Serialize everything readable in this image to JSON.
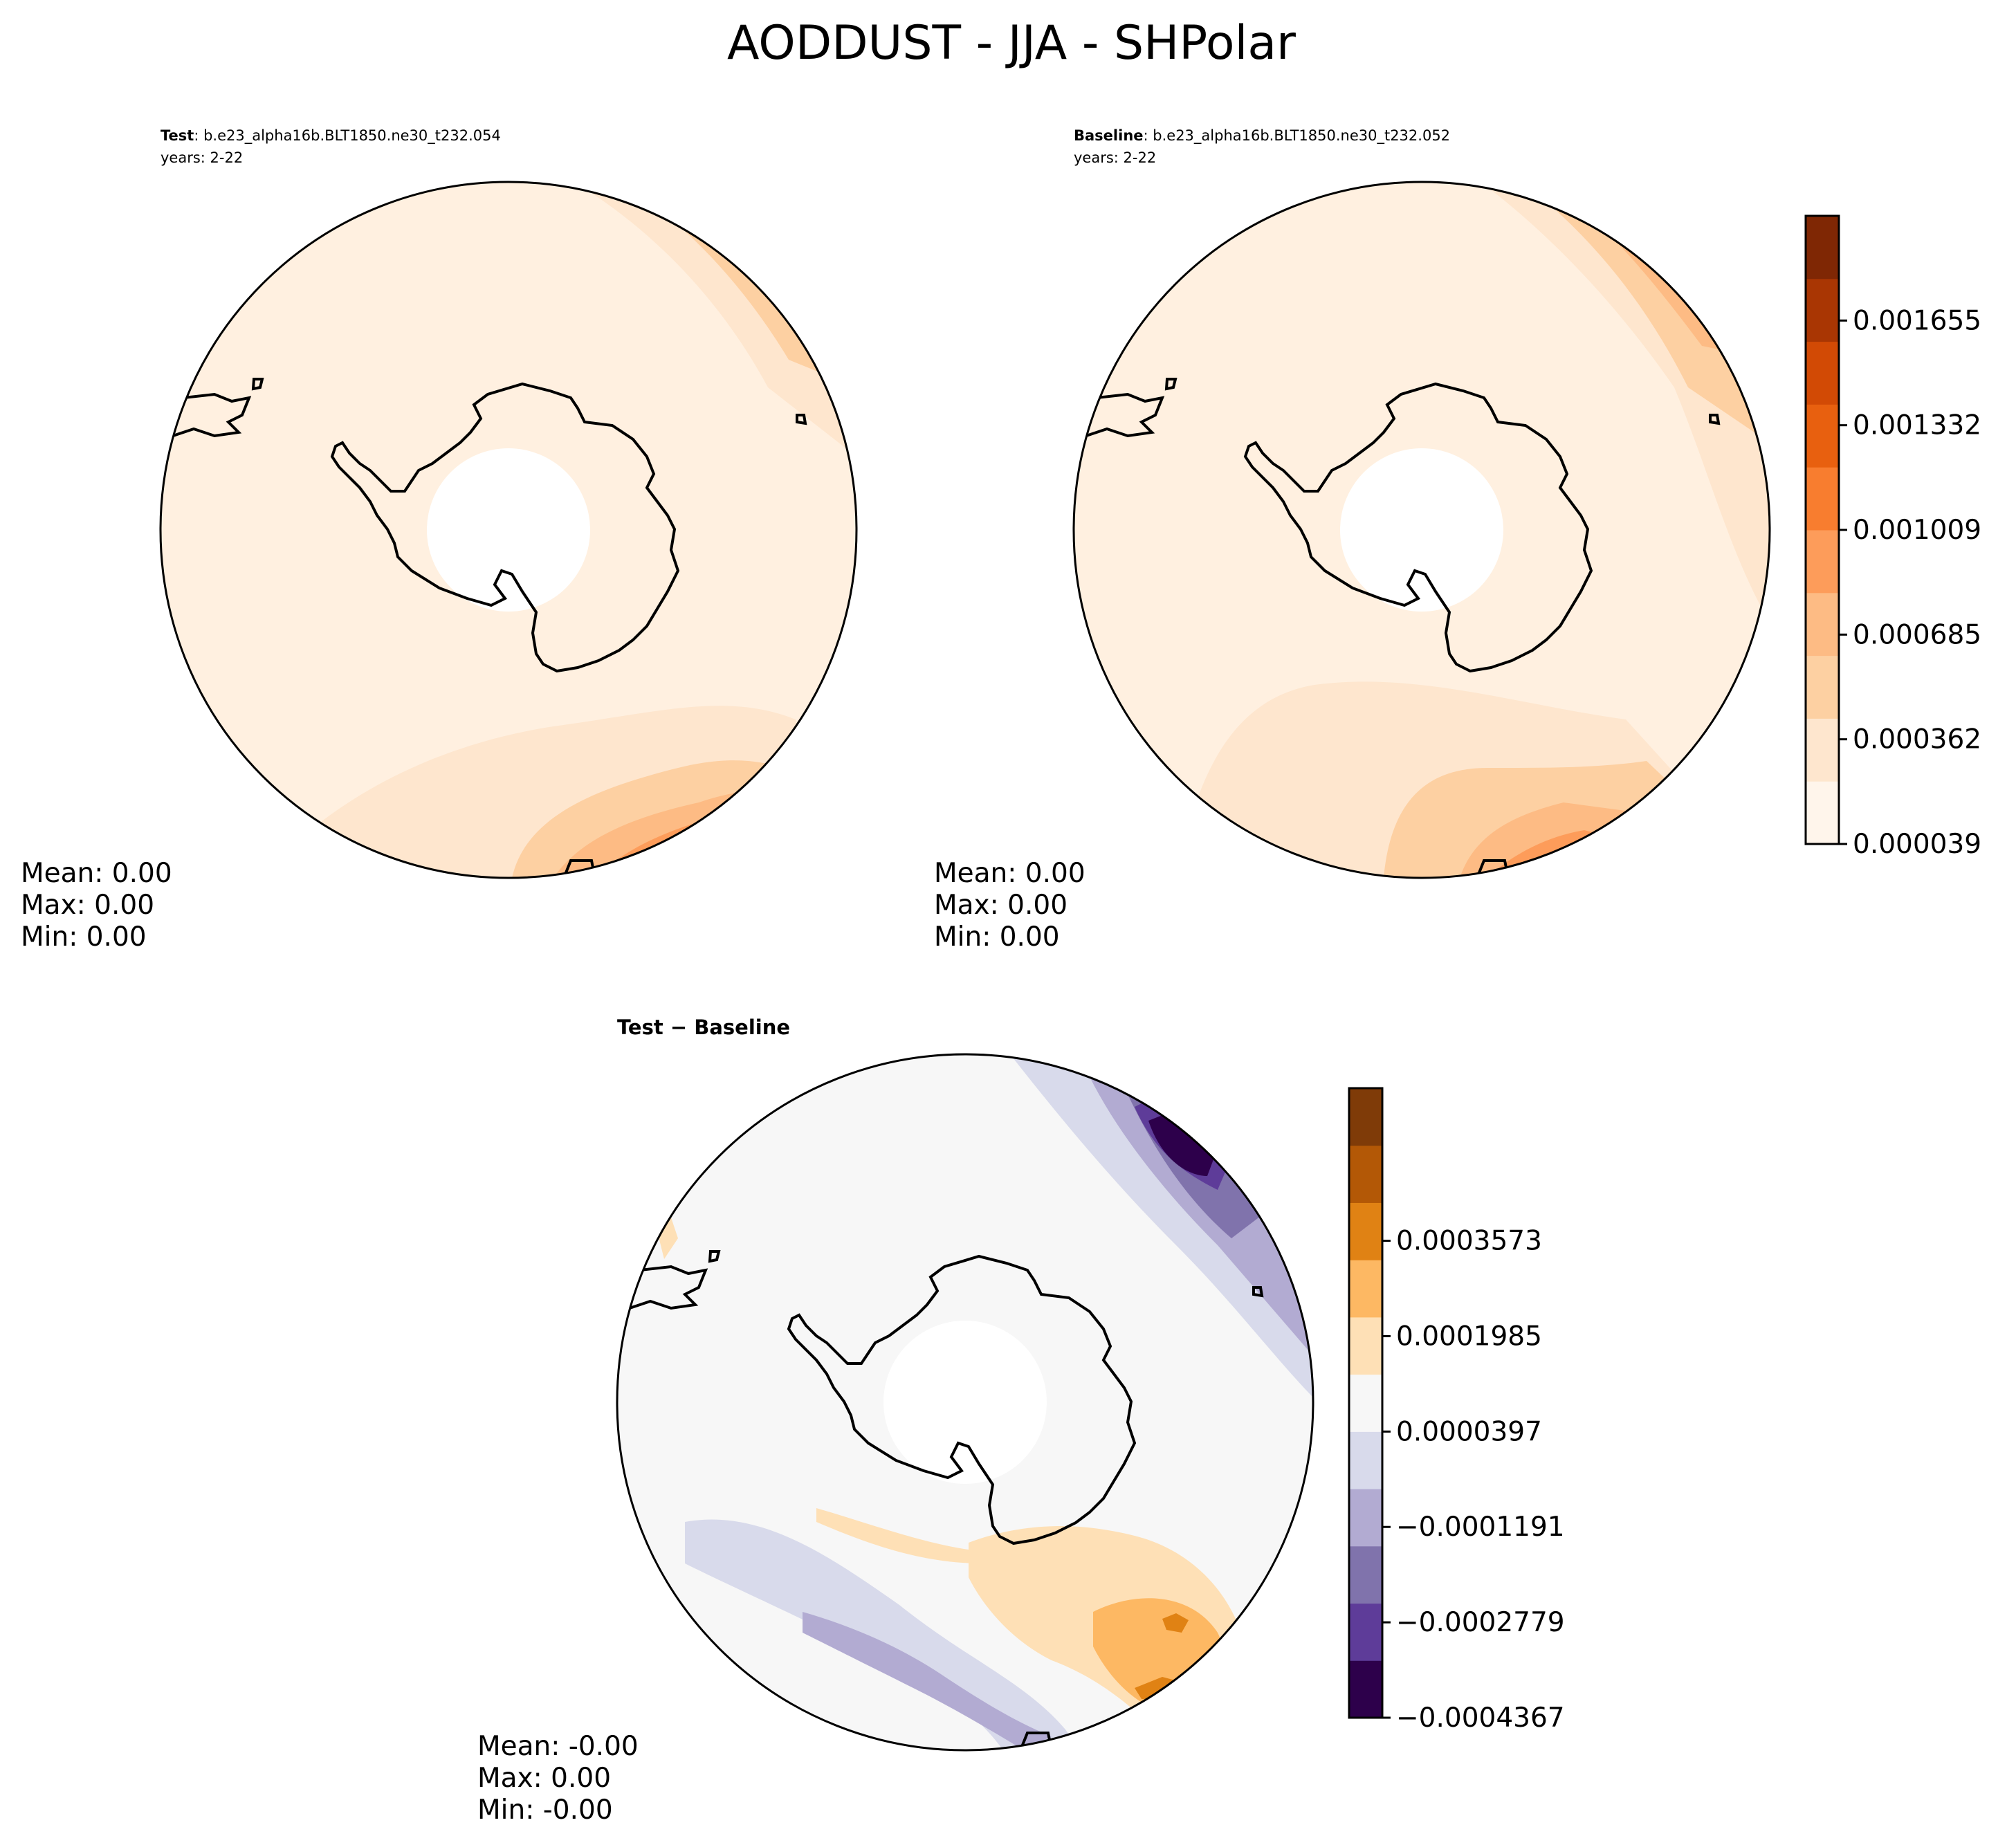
{
  "figure": {
    "title": "AODDUST - JJA - SHPolar"
  },
  "panels": {
    "test": {
      "label": "Test",
      "case": ": b.e23_alpha16b.BLT1850.ne30_t232.054",
      "years": "years: 2-22",
      "mean": "Mean:  0.00",
      "max": "Max:  0.00",
      "min": "Min:  0.00"
    },
    "baseline": {
      "label": "Baseline",
      "case": ": b.e23_alpha16b.BLT1850.ne30_t232.052",
      "years": "years: 2-22",
      "mean": "Mean:  0.00",
      "max": "Max:  0.00",
      "min": "Min:  0.00"
    },
    "diff": {
      "label": "Test − Baseline",
      "mean": "Mean: -0.00",
      "max": "Max:  0.00",
      "min": "Min: -0.00"
    }
  },
  "colorbar_top": {
    "ticks": [
      "0.000039",
      "0.000362",
      "0.000685",
      "0.001009",
      "0.001332",
      "0.001655"
    ],
    "colors": [
      "#fff5eb",
      "#fee6ce",
      "#fdd0a2",
      "#fdbb84",
      "#fd9c5a",
      "#f87d2f",
      "#e8600f",
      "#d24a05",
      "#a93603",
      "#7f2704"
    ]
  },
  "colorbar_diff": {
    "ticks": [
      "−0.0004367",
      "−0.0002779",
      "−0.0001191",
      "0.0000397",
      "0.0001985",
      "0.0003573"
    ],
    "colors": [
      "#2d004b",
      "#5e3c99",
      "#8073ac",
      "#b2abd2",
      "#d8daeb",
      "#f7f7f7",
      "#fee0b6",
      "#fdb863",
      "#e08214",
      "#b35806",
      "#7f3b08"
    ]
  },
  "colors": {
    "land_outline": "#000000",
    "ocean_base_top": "#fff0e0",
    "ocean_base_diff": "#f7f7f7"
  }
}
